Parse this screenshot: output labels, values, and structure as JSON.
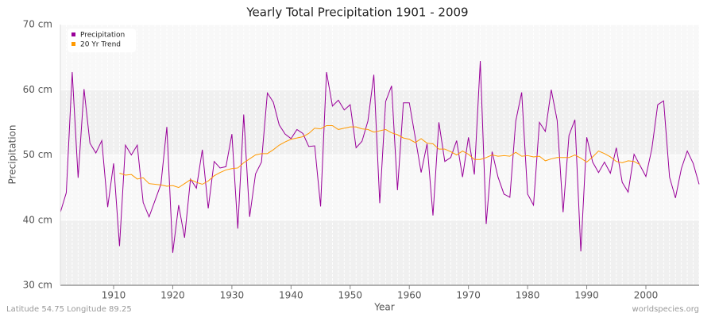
{
  "chart_data": {
    "type": "line",
    "title": "Yearly Total Precipitation 1901 - 2009",
    "x_label": "Year",
    "y_label": "Precipitation",
    "x": [
      1901,
      1902,
      1903,
      1904,
      1905,
      1906,
      1907,
      1908,
      1909,
      1910,
      1911,
      1912,
      1913,
      1914,
      1915,
      1916,
      1917,
      1918,
      1919,
      1920,
      1921,
      1922,
      1923,
      1924,
      1925,
      1926,
      1927,
      1928,
      1929,
      1930,
      1931,
      1932,
      1933,
      1934,
      1935,
      1936,
      1937,
      1938,
      1939,
      1940,
      1941,
      1942,
      1943,
      1944,
      1945,
      1946,
      1947,
      1948,
      1949,
      1950,
      1951,
      1952,
      1953,
      1954,
      1955,
      1956,
      1957,
      1958,
      1959,
      1960,
      1961,
      1962,
      1963,
      1964,
      1965,
      1966,
      1967,
      1968,
      1969,
      1970,
      1971,
      1972,
      1973,
      1974,
      1975,
      1976,
      1977,
      1978,
      1979,
      1980,
      1981,
      1982,
      1983,
      1984,
      1985,
      1986,
      1987,
      1988,
      1989,
      1990,
      1991,
      1992,
      1993,
      1994,
      1995,
      1996,
      1997,
      1998,
      1999,
      2000,
      2001,
      2002,
      2003,
      2004,
      2005,
      2006,
      2007,
      2008,
      2009
    ],
    "series": [
      {
        "name": "Precipitation",
        "color": "#990099",
        "values": [
          41.2,
          44.2,
          62.7,
          46.5,
          60.1,
          51.8,
          50.3,
          52.2,
          42.0,
          48.7,
          36.0,
          51.5,
          50.0,
          51.5,
          42.7,
          40.5,
          43.0,
          45.5,
          54.3,
          35.0,
          42.3,
          37.3,
          46.3,
          44.9,
          50.8,
          41.8,
          49.0,
          48.0,
          48.2,
          53.2,
          38.7,
          56.2,
          40.5,
          47.1,
          48.9,
          59.5,
          58.1,
          54.6,
          53.2,
          52.5,
          53.9,
          53.3,
          51.3,
          51.4,
          42.1,
          62.7,
          57.5,
          58.4,
          56.9,
          57.7,
          51.1,
          52.1,
          55.2,
          62.3,
          42.6,
          58.2,
          60.6,
          44.6,
          58.0,
          58.0,
          52.7,
          47.3,
          51.7,
          40.7,
          55.0,
          49.0,
          49.6,
          52.2,
          46.6,
          52.7,
          47.0,
          64.4,
          39.4,
          50.5,
          46.6,
          44.0,
          43.5,
          55.2,
          59.6,
          44.0,
          42.3,
          55.0,
          53.6,
          60.0,
          55.3,
          41.2,
          53.0,
          55.4,
          35.2,
          52.7,
          48.9,
          47.3,
          48.9,
          47.2,
          51.1,
          45.8,
          44.3,
          50.1,
          48.4,
          46.7,
          50.9,
          57.7,
          58.3,
          46.6,
          43.4,
          47.9,
          50.6,
          48.7,
          45.5
        ]
      },
      {
        "name": "20 Yr Trend",
        "color": "#ff9900",
        "values": [
          null,
          null,
          null,
          null,
          null,
          null,
          null,
          null,
          null,
          null,
          47.2,
          46.9,
          47.0,
          46.3,
          46.5,
          45.6,
          45.5,
          45.4,
          45.2,
          45.3,
          45.0,
          45.6,
          46.2,
          45.8,
          45.5,
          46.0,
          46.8,
          47.3,
          47.7,
          47.9,
          48.0,
          48.8,
          49.4,
          50.0,
          50.2,
          50.2,
          50.8,
          51.5,
          52.0,
          52.4,
          52.6,
          52.8,
          53.3,
          54.1,
          54.0,
          54.5,
          54.5,
          53.9,
          54.1,
          54.3,
          54.3,
          54.0,
          53.9,
          53.5,
          53.7,
          53.9,
          53.4,
          53.1,
          52.6,
          52.4,
          51.9,
          52.5,
          51.8,
          51.7,
          50.9,
          50.9,
          50.5,
          50.0,
          50.6,
          50.1,
          49.3,
          49.3,
          49.6,
          50.0,
          49.8,
          49.9,
          49.8,
          50.4,
          49.8,
          49.9,
          49.7,
          49.8,
          49.1,
          49.4,
          49.6,
          49.6,
          49.6,
          50.0,
          49.5,
          48.9,
          49.7,
          50.6,
          50.2,
          49.7,
          49.0,
          48.8,
          49.1,
          49.0,
          48.5,
          null,
          null,
          null,
          null,
          null,
          null,
          null,
          null,
          null,
          null
        ]
      }
    ],
    "xlim": [
      1901,
      2009
    ],
    "xticks": [
      1910,
      1920,
      1930,
      1940,
      1950,
      1960,
      1970,
      1980,
      1990,
      2000
    ],
    "ylim": [
      30,
      70
    ],
    "yticks": [
      {
        "value": 30,
        "label": "30 cm"
      },
      {
        "value": 40,
        "label": "40 cm"
      },
      {
        "value": 50,
        "label": "50 cm"
      },
      {
        "value": 60,
        "label": "60 cm"
      },
      {
        "value": 70,
        "label": "70 cm"
      }
    ],
    "grid": true,
    "legend": "top-left",
    "footer_left": "Latitude 54.75 Longitude 89.25",
    "footer_right": "worldspecies.org"
  }
}
